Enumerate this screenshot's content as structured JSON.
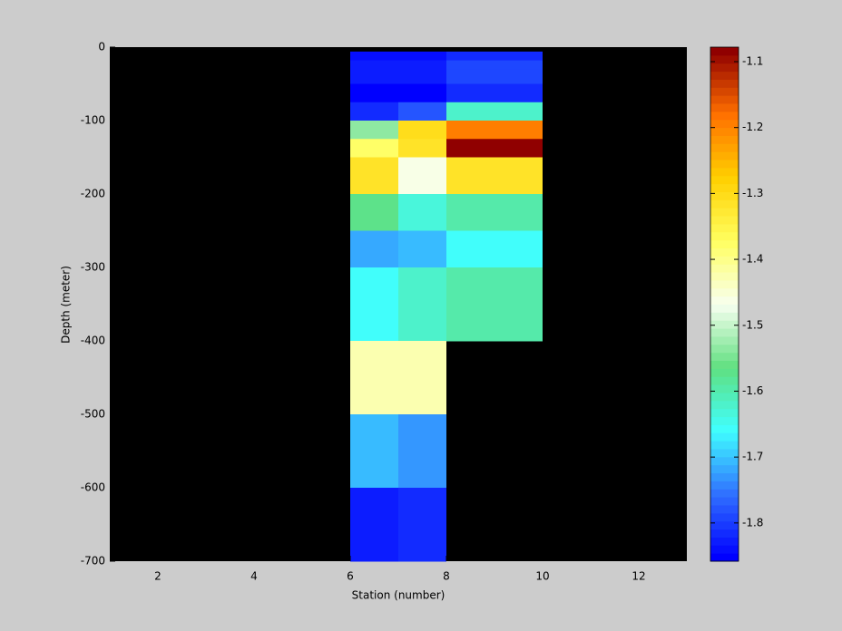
{
  "chart_data": {
    "type": "heatmap",
    "xlabel": "Station (number)",
    "ylabel": "Depth (meter)",
    "xlim": [
      1,
      13
    ],
    "xticks": [
      2,
      4,
      6,
      8,
      10,
      12
    ],
    "ylim": [
      -700,
      0
    ],
    "yticks": [
      -700,
      -600,
      -500,
      -400,
      -300,
      -200,
      -100,
      0
    ],
    "x_edges": [
      6,
      7,
      8,
      10
    ],
    "y_edges": [
      -6,
      -18,
      -30,
      -50,
      -75,
      -100,
      -125,
      -150,
      -200,
      -250,
      -300,
      -400,
      -500,
      -600,
      -700
    ],
    "values": [
      [
        -1.84,
        -1.84,
        -1.81
      ],
      [
        -1.83,
        -1.83,
        -1.79
      ],
      [
        -1.83,
        -1.83,
        -1.79
      ],
      [
        -1.855,
        -1.855,
        -1.82
      ],
      [
        -1.82,
        -1.78,
        -1.62
      ],
      [
        -1.53,
        -1.3,
        -1.19
      ],
      [
        -1.38,
        -1.31,
        -1.09
      ],
      [
        -1.32,
        -1.46,
        -1.31
      ],
      [
        -1.57,
        -1.63,
        -1.6
      ],
      [
        -1.72,
        -1.7,
        -1.66
      ],
      [
        -1.66,
        -1.62,
        -1.6
      ],
      [
        -1.43,
        -1.43,
        null
      ],
      [
        -1.7,
        -1.73,
        null
      ],
      [
        -1.83,
        -1.82,
        null
      ]
    ],
    "background": "#000000",
    "clim": [
      -1.858,
      -1.078
    ],
    "cticks": [
      -1.8,
      -1.7,
      -1.6,
      -1.5,
      -1.4,
      -1.3,
      -1.2,
      -1.1
    ],
    "colormap": [
      "#0000ff",
      "#3070ff",
      "#40ffff",
      "#60e080",
      "#f8fff0",
      "#ffff60",
      "#ffd000",
      "#ff7000",
      "#900000"
    ],
    "levels": 64
  }
}
